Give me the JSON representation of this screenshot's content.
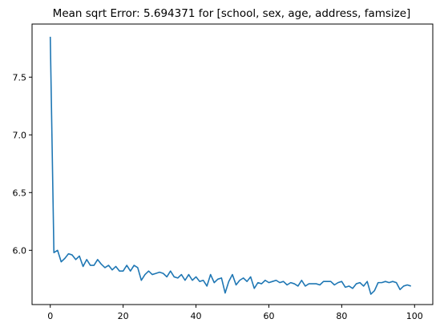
{
  "chart_data": {
    "type": "line",
    "title": "Mean sqrt Error: 5.694371 for [school, sex, age, address, famsize]",
    "xlabel": "",
    "ylabel": "",
    "xlim": [
      -5,
      105
    ],
    "ylim": [
      5.53,
      7.96
    ],
    "xticks": [
      0,
      20,
      40,
      60,
      80,
      100
    ],
    "yticks": [
      6.0,
      6.5,
      7.0,
      7.5
    ],
    "grid": false,
    "legend": "none",
    "colors": {
      "line": "#1f77b4",
      "axes": "#000000",
      "background": "#ffffff"
    },
    "series": [
      {
        "x": [
          0,
          1,
          2,
          3,
          4,
          5,
          6,
          7,
          8,
          9,
          10,
          11,
          12,
          13,
          14,
          15,
          16,
          17,
          18,
          19,
          20,
          21,
          22,
          23,
          24,
          25,
          26,
          27,
          28,
          29,
          30,
          31,
          32,
          33,
          34,
          35,
          36,
          37,
          38,
          39,
          40,
          41,
          42,
          43,
          44,
          45,
          46,
          47,
          48,
          49,
          50,
          51,
          52,
          53,
          54,
          55,
          56,
          57,
          58,
          59,
          60,
          61,
          62,
          63,
          64,
          65,
          66,
          67,
          68,
          69,
          70,
          71,
          72,
          73,
          74,
          75,
          76,
          77,
          78,
          79,
          80,
          81,
          82,
          83,
          84,
          85,
          86,
          87,
          88,
          89,
          90,
          91,
          92,
          93,
          94,
          95,
          96,
          97,
          98,
          99
        ],
        "values": [
          7.85,
          5.98,
          6.0,
          5.9,
          5.93,
          5.97,
          5.96,
          5.92,
          5.95,
          5.86,
          5.92,
          5.87,
          5.87,
          5.92,
          5.88,
          5.85,
          5.87,
          5.83,
          5.86,
          5.82,
          5.82,
          5.87,
          5.82,
          5.87,
          5.85,
          5.74,
          5.79,
          5.82,
          5.79,
          5.8,
          5.81,
          5.8,
          5.77,
          5.82,
          5.77,
          5.76,
          5.79,
          5.74,
          5.79,
          5.74,
          5.77,
          5.73,
          5.74,
          5.69,
          5.79,
          5.72,
          5.75,
          5.76,
          5.63,
          5.73,
          5.79,
          5.7,
          5.74,
          5.76,
          5.73,
          5.77,
          5.67,
          5.72,
          5.71,
          5.74,
          5.72,
          5.73,
          5.74,
          5.72,
          5.73,
          5.7,
          5.72,
          5.71,
          5.69,
          5.74,
          5.69,
          5.71,
          5.71,
          5.71,
          5.7,
          5.73,
          5.73,
          5.73,
          5.7,
          5.72,
          5.73,
          5.68,
          5.69,
          5.67,
          5.71,
          5.72,
          5.69,
          5.73,
          5.62,
          5.65,
          5.72,
          5.72,
          5.73,
          5.72,
          5.73,
          5.72,
          5.66,
          5.69,
          5.7,
          5.69
        ]
      }
    ]
  }
}
